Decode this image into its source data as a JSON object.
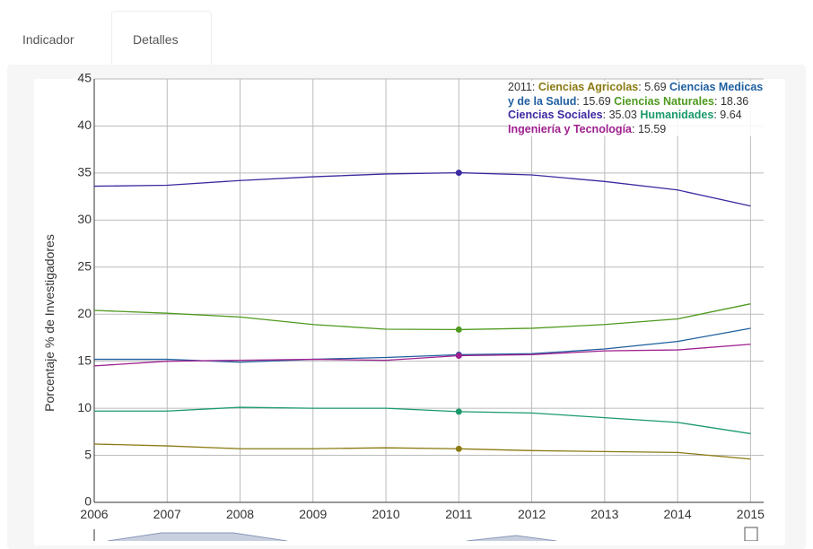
{
  "tabs": [
    "Indicador",
    "Detalles"
  ],
  "chart_data": {
    "type": "line",
    "ylabel": "Porcentaje % de Investigadores",
    "x": [
      2006,
      2007,
      2008,
      2009,
      2010,
      2011,
      2012,
      2013,
      2014,
      2015
    ],
    "xlim": [
      2006,
      2015.18
    ],
    "xticks": [
      2006,
      2007,
      2008,
      2009,
      2010,
      2011,
      2012,
      2013,
      2014,
      2015
    ],
    "ylim": [
      0,
      45
    ],
    "yticks": [
      0,
      5,
      10,
      15,
      20,
      25,
      30,
      35,
      40,
      45
    ],
    "grid": true,
    "highlight_x": 2011,
    "series": [
      {
        "name": "Ciencias Agricolas",
        "color": "#8a7a12",
        "values": [
          6.2,
          6.0,
          5.7,
          5.7,
          5.8,
          5.69,
          5.5,
          5.4,
          5.3,
          4.6
        ]
      },
      {
        "name": "Ciencias Medicas y de la Salud",
        "color": "#1f5f9f",
        "values": [
          15.2,
          15.2,
          14.9,
          15.2,
          15.4,
          15.69,
          15.8,
          16.3,
          17.1,
          18.5
        ]
      },
      {
        "name": "Ciencias Naturales",
        "color": "#4e9a1e",
        "values": [
          20.4,
          20.1,
          19.7,
          18.9,
          18.4,
          18.36,
          18.5,
          18.9,
          19.5,
          21.1
        ]
      },
      {
        "name": "Ciencias Sociales",
        "color": "#3b2aa0",
        "values": [
          33.6,
          33.7,
          34.2,
          34.6,
          34.9,
          35.03,
          34.8,
          34.1,
          33.2,
          31.5
        ]
      },
      {
        "name": "Humanidades",
        "color": "#1a9a6a",
        "values": [
          9.7,
          9.7,
          10.1,
          10.0,
          10.0,
          9.64,
          9.5,
          9.0,
          8.5,
          7.3
        ]
      },
      {
        "name": "Ingeniería y Tecnología",
        "color": "#a0208f",
        "values": [
          14.5,
          15.0,
          15.1,
          15.2,
          15.1,
          15.59,
          15.7,
          16.1,
          16.2,
          16.8
        ]
      }
    ]
  }
}
